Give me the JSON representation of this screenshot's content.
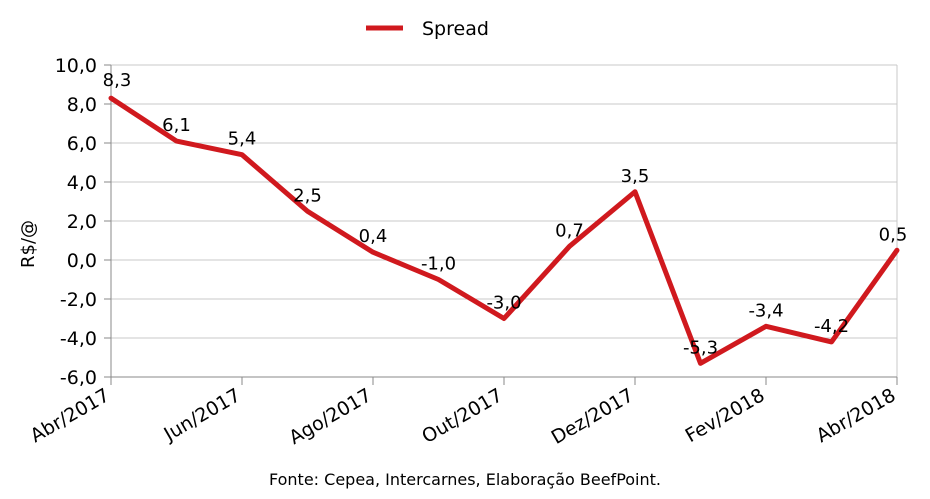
{
  "chart_data": {
    "type": "line",
    "ylabel": "R$/@",
    "ylim": [
      -6,
      10
    ],
    "yticks": [
      "10,0",
      "8,0",
      "6,0",
      "4,0",
      "2,0",
      "0,0",
      "-2,0",
      "-4,0",
      "-6,0"
    ],
    "ytick_values": [
      10,
      8,
      6,
      4,
      2,
      0,
      -2,
      -4,
      -6
    ],
    "x": [
      "Abr/2017",
      "Mai/2017",
      "Jun/2017",
      "Jul/2017",
      "Ago/2017",
      "Set/2017",
      "Out/2017",
      "Nov/2017",
      "Dez/2017",
      "Jan/2018",
      "Fev/2018",
      "Mar/2018",
      "Abr/2018"
    ],
    "xtick_labels": [
      "Abr/2017",
      "",
      "Jun/2017",
      "",
      "Ago/2017",
      "",
      "Out/2017",
      "",
      "Dez/2017",
      "",
      "Fev/2018",
      "",
      "Abr/2018"
    ],
    "series": [
      {
        "name": "Spread",
        "color": "#d0191e",
        "values": [
          8.3,
          6.1,
          5.4,
          2.5,
          0.4,
          -1.0,
          -3.0,
          0.7,
          3.5,
          -5.3,
          -3.4,
          -4.2,
          0.5
        ],
        "labels": [
          "8,3",
          "6,1",
          "5,4",
          "2,5",
          "0,4",
          "-1,0",
          "-3,0",
          "0,7",
          "3,5",
          "-5,3",
          "-3,4",
          "-4,2",
          "0,5"
        ]
      }
    ],
    "legend": "top-center",
    "grid": true
  },
  "source_note": "Fonte: Cepea, Intercarnes, Elaboração BeefPoint."
}
